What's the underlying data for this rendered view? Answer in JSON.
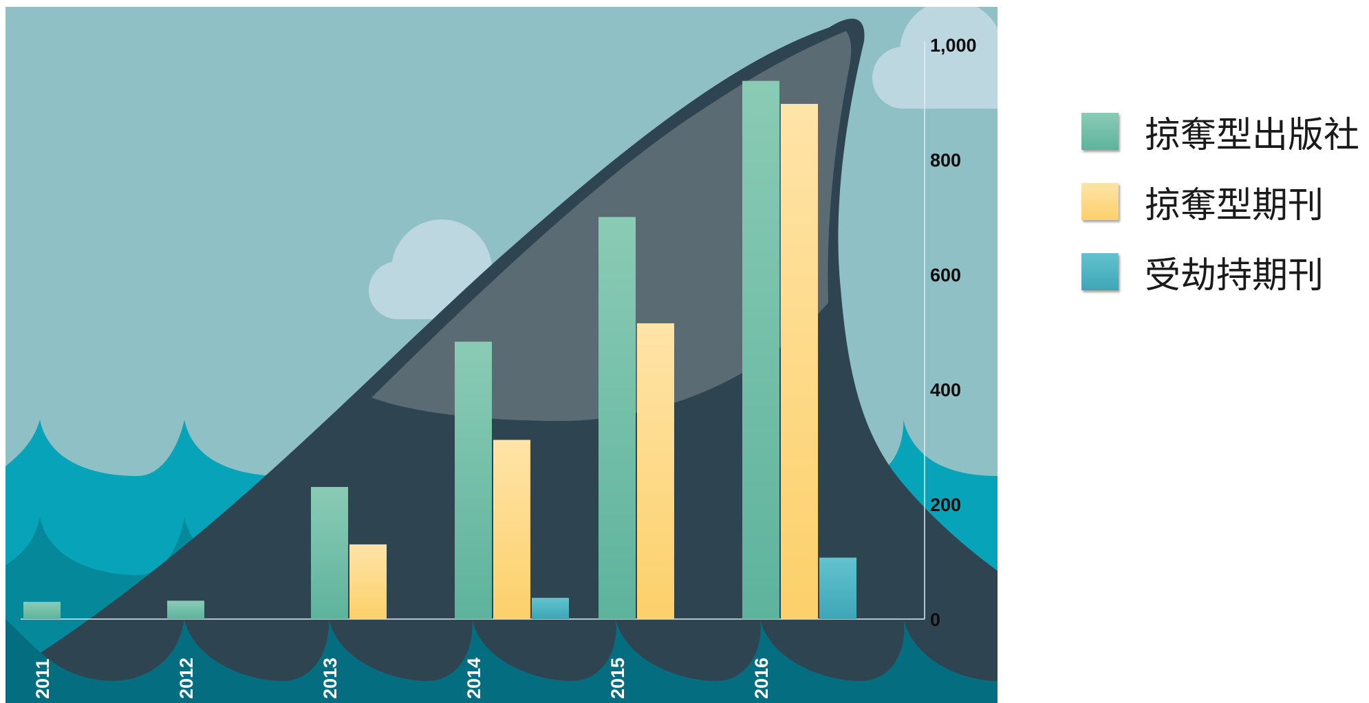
{
  "chart_data": {
    "type": "bar",
    "categories": [
      "2011",
      "2012",
      "2013",
      "2014",
      "2015",
      "2016"
    ],
    "series": [
      {
        "name": "掠奪型出版社",
        "values": [
          30,
          32,
          230,
          483,
          700,
          937
        ],
        "color_top": "#8acbb5",
        "color_bottom": "#5eb39c"
      },
      {
        "name": "掠奪型期刊",
        "values": [
          0,
          0,
          130,
          312,
          515,
          897
        ],
        "color_top": "#ffe4a8",
        "color_bottom": "#fcd06a"
      },
      {
        "name": "受劫持期刊",
        "values": [
          0,
          0,
          0,
          37,
          0,
          107
        ],
        "color_top": "#63c3cf",
        "color_bottom": "#3da6b6"
      }
    ],
    "yticks": [
      "0",
      "200",
      "400",
      "600",
      "800",
      "1,000"
    ],
    "ylim": [
      0,
      1000
    ],
    "y_axis_side": "right",
    "legend_position": "right"
  }
}
